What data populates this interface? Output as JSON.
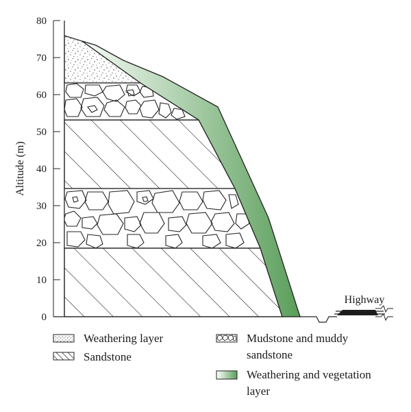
{
  "diagram": {
    "y_axis": {
      "label": "Altitude (m)",
      "ticks": [
        "0",
        "10",
        "20",
        "30",
        "40",
        "50",
        "60",
        "70",
        "80"
      ]
    },
    "highway_label": "Highway",
    "colors": {
      "vegetation_light": "#f4faf4",
      "vegetation_dark": "#5a9e5a",
      "stroke": "#222222"
    }
  },
  "legend": {
    "weathering_layer": "Weathering layer",
    "sandstone": "Sandstone",
    "mudstone_line1": "Mudstone and muddy",
    "mudstone_line2": "sandstone",
    "vegetation_line1": "Weathering and vegetation",
    "vegetation_line2": "layer"
  }
}
